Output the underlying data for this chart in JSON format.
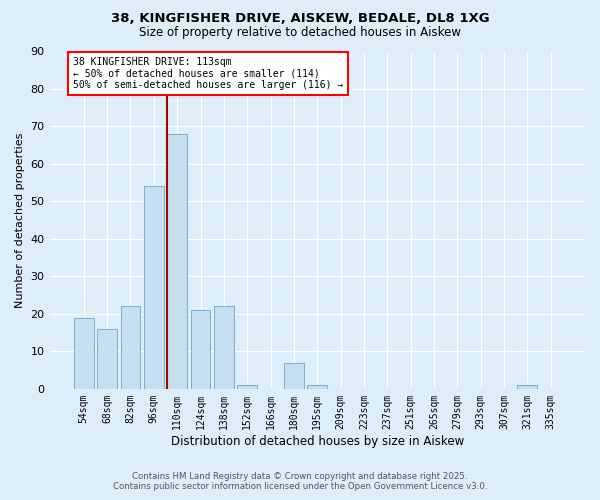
{
  "title1": "38, KINGFISHER DRIVE, AISKEW, BEDALE, DL8 1XG",
  "title2": "Size of property relative to detached houses in Aiskew",
  "xlabel": "Distribution of detached houses by size in Aiskew",
  "ylabel": "Number of detached properties",
  "bar_labels": [
    "54sqm",
    "68sqm",
    "82sqm",
    "96sqm",
    "110sqm",
    "124sqm",
    "138sqm",
    "152sqm",
    "166sqm",
    "180sqm",
    "195sqm",
    "209sqm",
    "223sqm",
    "237sqm",
    "251sqm",
    "265sqm",
    "279sqm",
    "293sqm",
    "307sqm",
    "321sqm",
    "335sqm"
  ],
  "bar_values": [
    19,
    16,
    22,
    54,
    68,
    21,
    22,
    1,
    0,
    7,
    1,
    0,
    0,
    0,
    0,
    0,
    0,
    0,
    0,
    1,
    0
  ],
  "bar_color": "#c5dff0",
  "bar_edgecolor": "#7aaecf",
  "background_color": "#ddeef8",
  "grid_color": "#ffffff",
  "vline_color": "#aa0000",
  "ylim": [
    0,
    90
  ],
  "yticks": [
    0,
    10,
    20,
    30,
    40,
    50,
    60,
    70,
    80,
    90
  ],
  "annotation_box_text": "38 KINGFISHER DRIVE: 113sqm\n← 50% of detached houses are smaller (114)\n50% of semi-detached houses are larger (116) →",
  "footer1": "Contains HM Land Registry data © Crown copyright and database right 2025.",
  "footer2": "Contains public sector information licensed under the Open Government Licence v3.0."
}
